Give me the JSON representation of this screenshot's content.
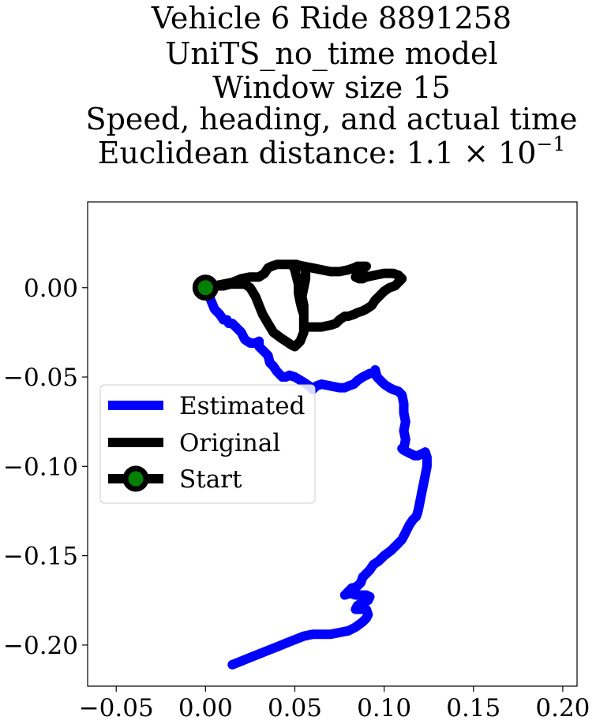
{
  "chart_data": {
    "type": "line",
    "title_lines": [
      "Vehicle 6 Ride 8891258",
      "UniTS_no_time model",
      "Window size 15",
      "Speed, heading, and actual time",
      "Euclidean distance: 1.1 × 10"
    ],
    "title_exponent": "−1",
    "xlim": [
      -0.066,
      0.208
    ],
    "ylim": [
      -0.223,
      0.048
    ],
    "x_ticks": [
      -0.05,
      0.0,
      0.05,
      0.1,
      0.15,
      0.2
    ],
    "x_tick_labels": [
      "−0.05",
      "0.00",
      "0.05",
      "0.10",
      "0.15",
      "0.20"
    ],
    "y_ticks": [
      0.0,
      -0.05,
      -0.1,
      -0.15,
      -0.2
    ],
    "y_tick_labels": [
      "0.00",
      "−0.05",
      "−0.10",
      "−0.15",
      "−0.20"
    ],
    "grid": false,
    "legend_position": "center-left",
    "series": [
      {
        "name": "Estimated",
        "color": "#0000ff",
        "x": [
          0.0,
          0.003,
          0.005,
          0.008,
          0.01,
          0.012,
          0.013,
          0.015,
          0.017,
          0.02,
          0.022,
          0.025,
          0.028,
          0.03,
          0.03,
          0.033,
          0.035,
          0.036,
          0.038,
          0.04,
          0.043,
          0.045,
          0.047,
          0.05,
          0.055,
          0.058,
          0.06,
          0.062,
          0.065,
          0.07,
          0.075,
          0.078,
          0.08,
          0.083,
          0.085,
          0.088,
          0.09,
          0.092,
          0.094,
          0.095,
          0.096,
          0.098,
          0.1,
          0.103,
          0.105,
          0.108,
          0.11,
          0.111,
          0.111,
          0.112,
          0.111,
          0.112,
          0.111,
          0.11,
          0.111,
          0.113,
          0.115,
          0.117,
          0.119,
          0.121,
          0.123,
          0.124,
          0.124,
          0.123,
          0.122,
          0.121,
          0.12,
          0.119,
          0.118,
          0.116,
          0.114,
          0.112,
          0.11,
          0.107,
          0.104,
          0.1,
          0.097,
          0.094,
          0.092,
          0.09,
          0.088,
          0.087,
          0.085,
          0.083,
          0.082,
          0.08,
          0.079,
          0.078,
          0.081,
          0.084,
          0.087,
          0.09,
          0.092,
          0.091,
          0.088,
          0.085,
          0.084,
          0.086,
          0.088,
          0.09,
          0.091,
          0.09,
          0.088,
          0.084,
          0.08,
          0.075,
          0.07,
          0.065,
          0.06,
          0.055,
          0.05,
          0.045,
          0.04,
          0.035,
          0.03,
          0.025,
          0.02,
          0.015
        ],
        "y": [
          0.0,
          -0.007,
          -0.012,
          -0.015,
          -0.018,
          -0.018,
          -0.02,
          -0.02,
          -0.022,
          -0.025,
          -0.029,
          -0.031,
          -0.031,
          -0.03,
          -0.033,
          -0.036,
          -0.038,
          -0.042,
          -0.044,
          -0.047,
          -0.05,
          -0.05,
          -0.049,
          -0.05,
          -0.053,
          -0.055,
          -0.057,
          -0.055,
          -0.054,
          -0.055,
          -0.056,
          -0.056,
          -0.055,
          -0.054,
          -0.052,
          -0.05,
          -0.049,
          -0.048,
          -0.048,
          -0.046,
          -0.05,
          -0.052,
          -0.054,
          -0.056,
          -0.057,
          -0.058,
          -0.06,
          -0.065,
          -0.07,
          -0.075,
          -0.08,
          -0.085,
          -0.09,
          -0.09,
          -0.091,
          -0.092,
          -0.093,
          -0.094,
          -0.094,
          -0.093,
          -0.092,
          -0.095,
          -0.1,
          -0.105,
          -0.11,
          -0.115,
          -0.12,
          -0.125,
          -0.128,
          -0.13,
          -0.133,
          -0.137,
          -0.141,
          -0.144,
          -0.147,
          -0.15,
          -0.153,
          -0.155,
          -0.158,
          -0.16,
          -0.162,
          -0.165,
          -0.167,
          -0.168,
          -0.168,
          -0.17,
          -0.171,
          -0.172,
          -0.171,
          -0.172,
          -0.172,
          -0.172,
          -0.173,
          -0.175,
          -0.176,
          -0.178,
          -0.18,
          -0.18,
          -0.18,
          -0.18,
          -0.183,
          -0.185,
          -0.187,
          -0.19,
          -0.192,
          -0.193,
          -0.194,
          -0.194,
          -0.194,
          -0.195,
          -0.197,
          -0.199,
          -0.201,
          -0.203,
          -0.205,
          -0.207,
          -0.209,
          -0.211
        ]
      },
      {
        "name": "Original",
        "color": "#000000",
        "x": [
          0.0,
          0.005,
          0.01,
          0.015,
          0.02,
          0.025,
          0.03,
          0.033,
          0.035,
          0.037,
          0.04,
          0.045,
          0.05,
          0.055,
          0.06,
          0.065,
          0.07,
          0.075,
          0.08,
          0.083,
          0.085,
          0.088,
          0.09,
          0.088,
          0.086,
          0.084,
          0.086,
          0.088,
          0.09,
          0.095,
          0.1,
          0.105,
          0.108,
          0.11,
          0.108,
          0.106,
          0.103,
          0.1,
          0.097,
          0.095,
          0.093,
          0.09,
          0.088,
          0.085,
          0.083,
          0.08,
          0.078,
          0.075,
          0.073,
          0.07,
          0.065,
          0.06,
          0.056,
          0.055,
          0.055,
          0.055,
          0.055,
          0.054,
          0.055,
          0.056,
          0.056,
          0.054,
          0.051,
          0.05,
          0.049,
          0.05,
          0.051,
          0.052,
          0.052,
          0.053,
          0.054,
          0.055,
          0.055,
          0.055,
          0.053,
          0.051,
          0.05,
          0.048,
          0.045,
          0.042,
          0.038,
          0.035,
          0.032,
          0.03,
          0.028,
          0.025,
          0.022,
          0.018,
          0.014,
          0.01,
          0.006,
          0.003,
          0.0
        ],
        "y": [
          0.0,
          0.001,
          0.002,
          0.003,
          0.005,
          0.006,
          0.006,
          0.008,
          0.011,
          0.012,
          0.013,
          0.013,
          0.013,
          0.012,
          0.011,
          0.01,
          0.009,
          0.009,
          0.01,
          0.011,
          0.012,
          0.012,
          0.012,
          0.01,
          0.008,
          0.006,
          0.005,
          0.005,
          0.006,
          0.007,
          0.008,
          0.008,
          0.007,
          0.005,
          0.003,
          0.001,
          0.0,
          -0.002,
          -0.005,
          -0.007,
          -0.01,
          -0.012,
          -0.013,
          -0.014,
          -0.015,
          -0.016,
          -0.016,
          -0.018,
          -0.02,
          -0.021,
          -0.022,
          -0.022,
          -0.022,
          -0.02,
          -0.018,
          -0.015,
          -0.01,
          -0.005,
          0.0,
          0.005,
          0.01,
          0.012,
          0.013,
          0.013,
          0.012,
          0.01,
          0.006,
          0.002,
          -0.003,
          -0.008,
          -0.012,
          -0.015,
          -0.02,
          -0.025,
          -0.03,
          -0.032,
          -0.033,
          -0.032,
          -0.03,
          -0.028,
          -0.025,
          -0.02,
          -0.015,
          -0.01,
          -0.005,
          0.0,
          0.002,
          0.002,
          0.002,
          0.001,
          0.001,
          0.001,
          0.0
        ]
      },
      {
        "name": "Start",
        "color": "#000000",
        "marker_fill": "#008000",
        "x": [
          0.0
        ],
        "y": [
          0.0
        ]
      }
    ]
  }
}
